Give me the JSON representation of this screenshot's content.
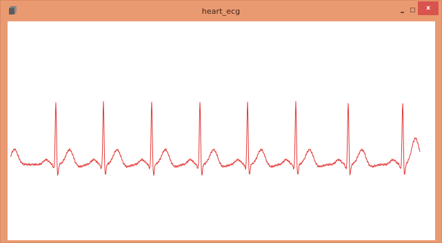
{
  "window": {
    "title": "heart_ecg",
    "icons": {
      "app": "app-window-icon",
      "minimize": "minimize-icon",
      "maximize": "maximize-icon",
      "close": "close-icon"
    },
    "close_glyph": "x"
  },
  "colors": {
    "titlebar": "#ea9a70",
    "close_button": "#d9534f",
    "trace": "#e23636",
    "canvas": "#ffffff"
  },
  "ecg": {
    "beat_count": 8
  }
}
